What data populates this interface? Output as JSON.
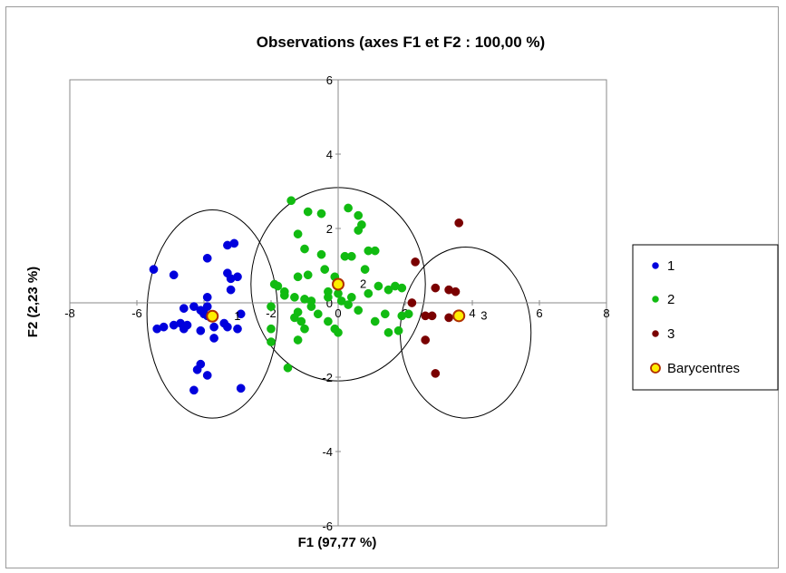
{
  "chart_data": {
    "type": "scatter",
    "title": "Observations (axes F1 et F2 : 100,00 %)",
    "xlabel": "F1 (97,77 %)",
    "ylabel": "F2 (2,23 %)",
    "xlim": [
      -8,
      8
    ],
    "ylim": [
      -6,
      6
    ],
    "xticks": [
      "-8",
      "-6",
      "-4",
      "-2",
      "0",
      "2",
      "4",
      "6",
      "8"
    ],
    "yticks": [
      "-6",
      "-4",
      "-2",
      "0",
      "2",
      "4",
      "6"
    ],
    "grid": false,
    "legend_position": "right",
    "series": [
      {
        "name": "1",
        "color": "#0000dd",
        "points": [
          [
            -5.5,
            0.9
          ],
          [
            -4.9,
            0.75
          ],
          [
            -3.9,
            1.2
          ],
          [
            -3.3,
            1.55
          ],
          [
            -3.1,
            1.6
          ],
          [
            -3.3,
            0.8
          ],
          [
            -3.2,
            0.65
          ],
          [
            -3.0,
            0.7
          ],
          [
            -3.2,
            0.35
          ],
          [
            -3.9,
            0.15
          ],
          [
            -4.6,
            -0.15
          ],
          [
            -4.3,
            -0.1
          ],
          [
            -4.1,
            -0.2
          ],
          [
            -3.9,
            -0.1
          ],
          [
            -4.0,
            -0.3
          ],
          [
            -4.7,
            -0.55
          ],
          [
            -4.5,
            -0.6
          ],
          [
            -4.9,
            -0.6
          ],
          [
            -5.2,
            -0.65
          ],
          [
            -5.4,
            -0.7
          ],
          [
            -4.6,
            -0.7
          ],
          [
            -4.1,
            -0.75
          ],
          [
            -3.9,
            -0.35
          ],
          [
            -3.7,
            -0.65
          ],
          [
            -3.4,
            -0.55
          ],
          [
            -3.3,
            -0.65
          ],
          [
            -3.0,
            -0.7
          ],
          [
            -2.9,
            -0.3
          ],
          [
            -3.7,
            -0.95
          ],
          [
            -4.1,
            -1.65
          ],
          [
            -4.2,
            -1.8
          ],
          [
            -3.9,
            -1.95
          ],
          [
            -4.3,
            -2.35
          ],
          [
            -2.9,
            -2.3
          ],
          [
            -3.8,
            -0.4
          ]
        ]
      },
      {
        "name": "2",
        "color": "#11bb11",
        "points": [
          [
            -1.4,
            2.75
          ],
          [
            -0.5,
            2.4
          ],
          [
            -0.9,
            2.45
          ],
          [
            0.3,
            2.55
          ],
          [
            0.6,
            2.35
          ],
          [
            0.7,
            2.1
          ],
          [
            0.6,
            1.95
          ],
          [
            -1.2,
            1.85
          ],
          [
            0.4,
            1.25
          ],
          [
            0.2,
            1.25
          ],
          [
            -0.5,
            1.3
          ],
          [
            0.9,
            1.4
          ],
          [
            1.1,
            1.4
          ],
          [
            -1.0,
            1.45
          ],
          [
            -0.4,
            0.9
          ],
          [
            0.8,
            0.9
          ],
          [
            -0.9,
            0.75
          ],
          [
            -1.2,
            0.7
          ],
          [
            -0.1,
            0.7
          ],
          [
            -1.9,
            0.5
          ],
          [
            -1.8,
            0.45
          ],
          [
            -1.6,
            0.3
          ],
          [
            -1.6,
            0.2
          ],
          [
            -1.3,
            0.15
          ],
          [
            -1.0,
            0.1
          ],
          [
            -0.8,
            0.05
          ],
          [
            -0.3,
            0.3
          ],
          [
            0.0,
            0.25
          ],
          [
            -0.3,
            0.15
          ],
          [
            0.1,
            0.05
          ],
          [
            0.4,
            0.15
          ],
          [
            0.9,
            0.25
          ],
          [
            1.2,
            0.45
          ],
          [
            1.5,
            0.35
          ],
          [
            1.7,
            0.45
          ],
          [
            1.9,
            0.4
          ],
          [
            0.3,
            -0.05
          ],
          [
            -2.0,
            -0.1
          ],
          [
            -1.2,
            -0.25
          ],
          [
            -0.6,
            -0.3
          ],
          [
            -0.8,
            -0.1
          ],
          [
            1.4,
            -0.3
          ],
          [
            1.9,
            -0.35
          ],
          [
            2.1,
            -0.3
          ],
          [
            -2.0,
            -0.7
          ],
          [
            -1.1,
            -0.5
          ],
          [
            -1.0,
            -0.7
          ],
          [
            0.0,
            -0.8
          ],
          [
            1.1,
            -0.5
          ],
          [
            1.5,
            -0.8
          ],
          [
            1.8,
            -0.75
          ],
          [
            -1.5,
            -1.75
          ],
          [
            -1.2,
            -1.0
          ],
          [
            -2.0,
            -1.05
          ],
          [
            -1.3,
            -0.4
          ],
          [
            0.6,
            -0.2
          ],
          [
            -0.3,
            -0.5
          ],
          [
            -0.1,
            -0.7
          ]
        ]
      },
      {
        "name": "3",
        "color": "#7a0000",
        "points": [
          [
            3.6,
            2.15
          ],
          [
            2.3,
            1.1
          ],
          [
            2.9,
            0.4
          ],
          [
            3.3,
            0.35
          ],
          [
            3.5,
            0.3
          ],
          [
            2.2,
            0.0
          ],
          [
            2.6,
            -0.35
          ],
          [
            2.8,
            -0.35
          ],
          [
            3.3,
            -0.4
          ],
          [
            2.6,
            -1.0
          ],
          [
            2.9,
            -1.9
          ]
        ]
      },
      {
        "name": "Barycentres",
        "color": "#ffee00",
        "edge_color": "#b03000",
        "points": [
          [
            -3.75,
            -0.36
          ],
          [
            0.0,
            0.5
          ],
          [
            3.6,
            -0.35
          ]
        ],
        "labels": [
          "1",
          "2",
          "3"
        ]
      }
    ],
    "ellipses": [
      {
        "center": [
          -3.75,
          -0.3
        ],
        "rx": 1.95,
        "ry": 2.8
      },
      {
        "center": [
          0.0,
          0.5
        ],
        "rx": 2.6,
        "ry": 2.6
      },
      {
        "center": [
          3.8,
          -0.8
        ],
        "rx": 1.95,
        "ry": 2.3
      }
    ]
  }
}
